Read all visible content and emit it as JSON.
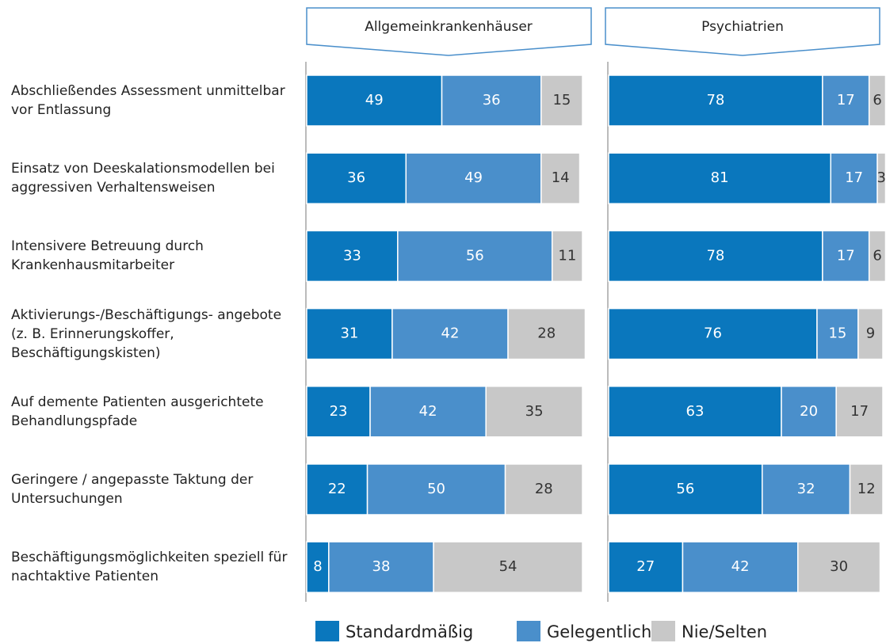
{
  "chart_data": [
    {
      "type": "bar",
      "title": "Allgemeinkrankenhäuser",
      "categories": [
        "Abschließendes Assessment unmittelbar vor Entlassung",
        "Einsatz von Deeskalationsmodellen bei aggressiven Verhaltensweisen",
        "Intensivere Betreuung durch Krankenhausmitarbeiter",
        "Aktivierungs-/Beschäftigungs- angebote (z. B. Erinnerungskoffer, Beschäftigungskisten)",
        "Auf demente Patienten ausgerichtete Behandlungspfade",
        "Geringere / angepasste Taktung der Untersuchungen",
        "Beschäftigungsmöglichkeiten speziell für nachtaktive Patienten"
      ],
      "xlim": [
        0,
        100
      ],
      "series": [
        {
          "name": "Standardmäßig",
          "color": "#0a77bd",
          "values": [
            49,
            36,
            33,
            31,
            23,
            22,
            8
          ]
        },
        {
          "name": "Gelegentlich",
          "color": "#4a8fcb",
          "values": [
            36,
            49,
            56,
            42,
            42,
            50,
            38
          ]
        },
        {
          "name": "Nie/Selten",
          "color": "#c8c8c8",
          "values": [
            15,
            14,
            11,
            28,
            35,
            28,
            54
          ]
        }
      ]
    },
    {
      "type": "bar",
      "title": "Psychiatrien",
      "xlim": [
        0,
        100
      ],
      "series": [
        {
          "color": "#0a77bd",
          "values": [
            78,
            81,
            78,
            76,
            63,
            56,
            27
          ]
        },
        {
          "color": "#4a8fcb",
          "values": [
            17,
            17,
            17,
            15,
            20,
            32,
            42
          ]
        },
        {
          "color": "#c8c8c8",
          "values": [
            6,
            3,
            6,
            9,
            17,
            12,
            30
          ]
        }
      ]
    }
  ]
}
